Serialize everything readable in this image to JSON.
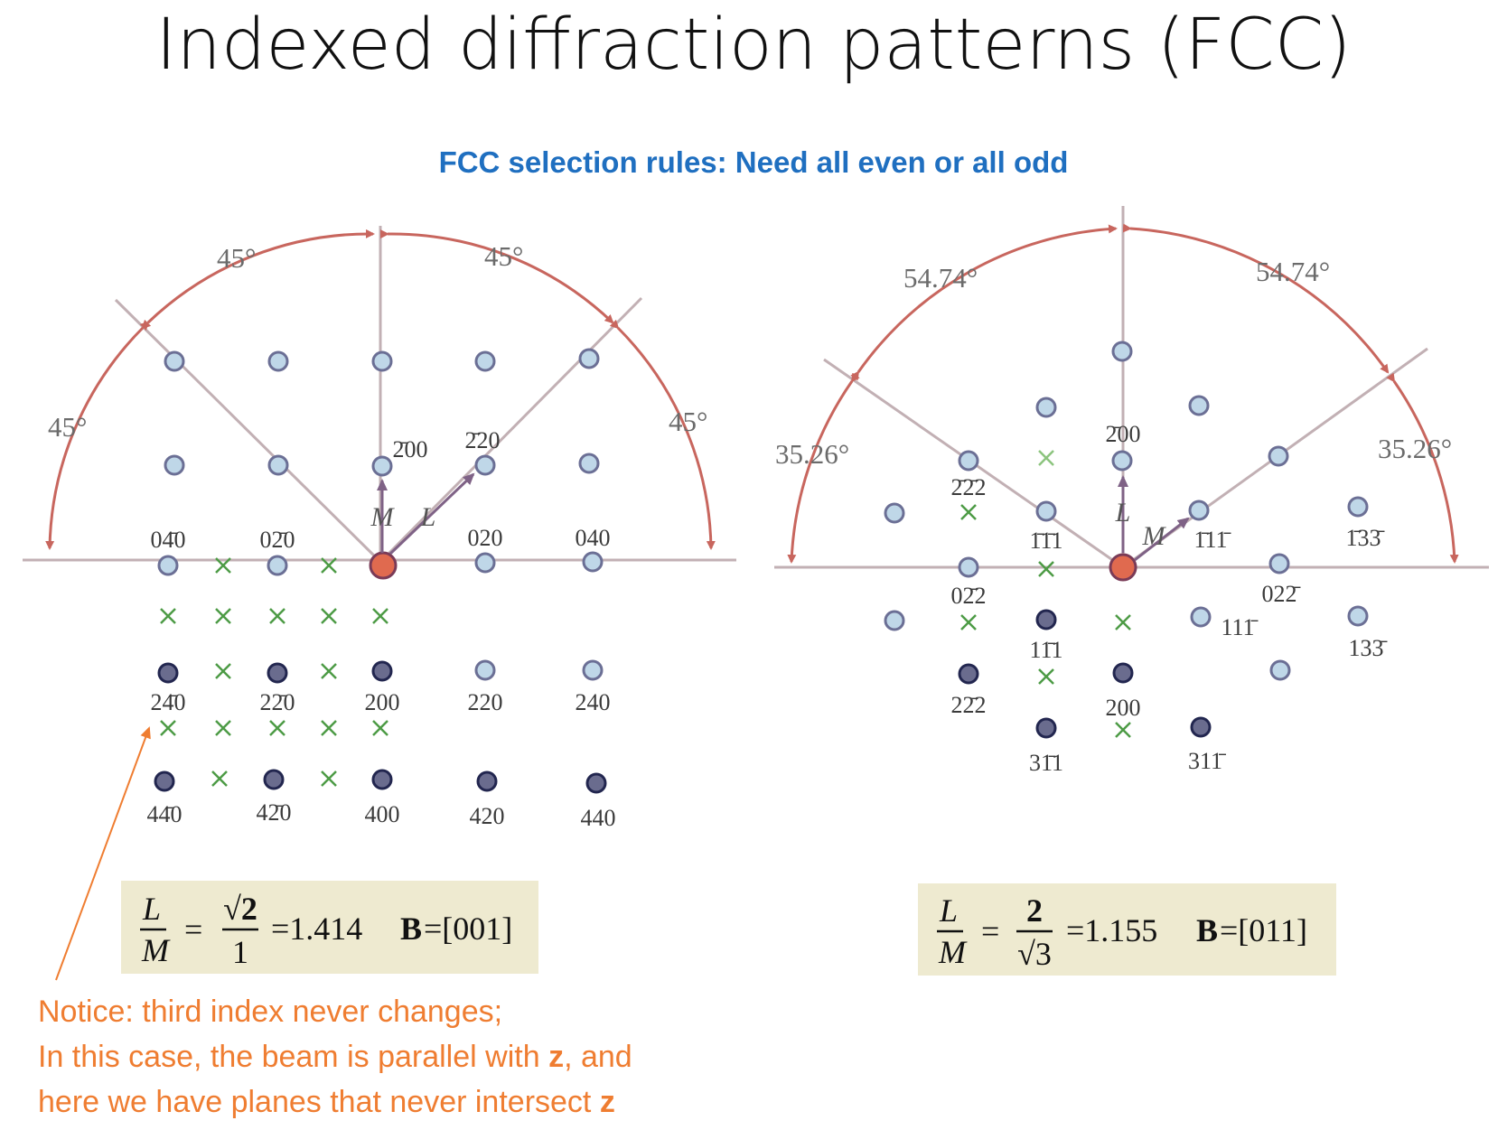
{
  "slide": {
    "title": "Indexed diffraction patterns (FCC)",
    "subtitle": "FCC selection rules:  Need all even or all odd",
    "subtitle_color": "#1f6fc0",
    "note_color": "#ef7d31"
  },
  "note": {
    "line1": "Notice: third index never changes;",
    "line2_prefix": "In this case, the beam is parallel with ",
    "line2_bold": "z",
    "line2_suffix": ", and",
    "line3_prefix": "here we have planes that never intersect ",
    "line3_bold": "z"
  },
  "colors": {
    "arc": "#c8665e",
    "axis": "#c2b0b4",
    "spot_light": "#bfd7e8",
    "spot_dark": "#2a2f5e",
    "center_spot": "#e06a4f",
    "extinct_mark": "#4d9b45",
    "vector_arrow": "#7f6286",
    "formula_bg": "#eeead0"
  },
  "left_pattern": {
    "angles": [
      "45°",
      "45°",
      "45°",
      "45°"
    ],
    "vector_labels": {
      "m": "M",
      "l": "L",
      "m_target": "2̄00",
      "l_target": "2̄20"
    },
    "spot_labels": [
      {
        "id": "040bar",
        "text": "04̄0"
      },
      {
        "id": "020bar",
        "text": "02̄0"
      },
      {
        "id": "020",
        "text": "020"
      },
      {
        "id": "040",
        "text": "040"
      },
      {
        "id": "240bar",
        "text": "24̄0"
      },
      {
        "id": "220bar",
        "text": "22̄0"
      },
      {
        "id": "200",
        "text": "200"
      },
      {
        "id": "220",
        "text": "220"
      },
      {
        "id": "240",
        "text": "240"
      },
      {
        "id": "440bar",
        "text": "44̄0"
      },
      {
        "id": "420bar",
        "text": "42̄0"
      },
      {
        "id": "400",
        "text": "400"
      },
      {
        "id": "420",
        "text": "420"
      },
      {
        "id": "440",
        "text": "440"
      }
    ],
    "formula": {
      "lhs_num": "L",
      "lhs_den": "M",
      "eq1": "=",
      "rhs_num": "√2",
      "rhs_den": "1",
      "value": "=1.414",
      "zone_bold": "B",
      "zone": "=[001]"
    }
  },
  "right_pattern": {
    "angles": [
      "54.74°",
      "54.74°",
      "35.26°",
      "35.26°"
    ],
    "vector_labels": {
      "m": "M",
      "l": "L",
      "l_target": "2̄00",
      "m_target": "1̄11̄"
    },
    "spot_labels": [
      {
        "id": "222top",
        "text": "2̄2̄2"
      },
      {
        "id": "111bar",
        "text": "1̄1̄1"
      },
      {
        "id": "133",
        "text": "1̄33̄"
      },
      {
        "id": "022",
        "text": "02̄2"
      },
      {
        "id": "022b",
        "text": "022̄"
      },
      {
        "id": "111c",
        "text": "11̄1"
      },
      {
        "id": "111d",
        "text": "111̄"
      },
      {
        "id": "133b",
        "text": "133̄"
      },
      {
        "id": "222",
        "text": "22̄2"
      },
      {
        "id": "200",
        "text": "200"
      },
      {
        "id": "311",
        "text": "31̄1"
      },
      {
        "id": "311b",
        "text": "311̄"
      }
    ],
    "formula": {
      "lhs_num": "L",
      "lhs_den": "M",
      "eq1": "=",
      "rhs_num": "2",
      "rhs_den": "√3",
      "value": "=1.155",
      "zone_bold": "B",
      "zone": "=[011]"
    }
  }
}
